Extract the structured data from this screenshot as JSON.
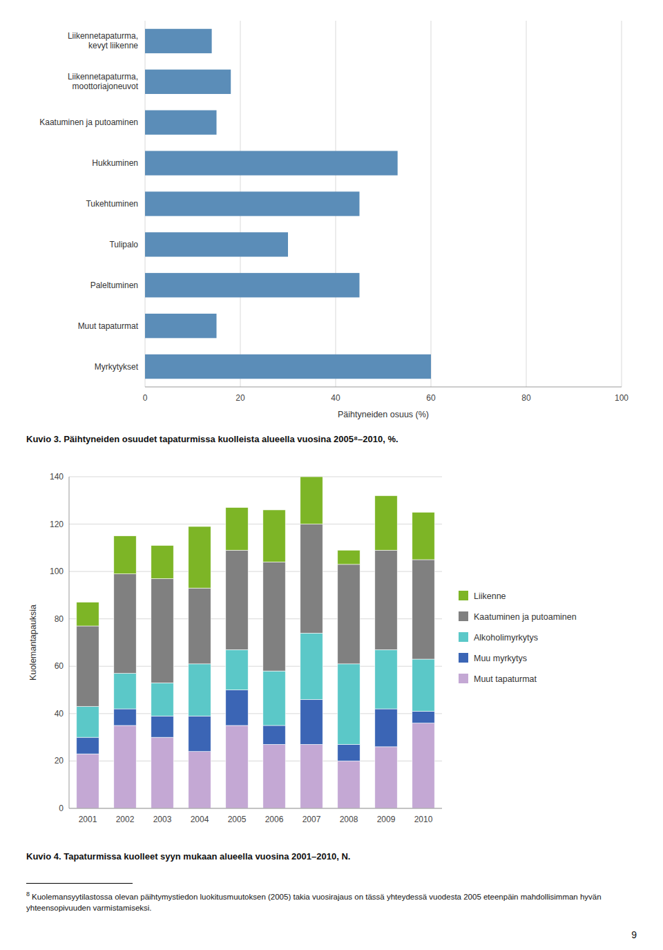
{
  "chart_data": [
    {
      "type": "bar",
      "orientation": "horizontal",
      "title": "Kuvio 3. Päihtyneiden osuudet tapaturmissa kuolleista alueella vuosina 2005⁸–2010, %.",
      "categories": [
        "Liikennetapaturma,\nkevyt liikenne",
        "Liikennetapaturma,\nmoottoriajoneuvot",
        "Kaatuminen ja putoaminen",
        "Hukkuminen",
        "Tukehtuminen",
        "Tulipalo",
        "Paleltuminen",
        "Muut tapaturmat",
        "Myrkytykset"
      ],
      "values": [
        14,
        18,
        15,
        53,
        45,
        30,
        45,
        15,
        60
      ],
      "color": "#5b8db8",
      "xlabel": "Päihtyneiden osuus (%)",
      "xlim": [
        0,
        100
      ],
      "xticks": [
        0,
        20,
        40,
        60,
        80,
        100
      ],
      "grid": true
    },
    {
      "type": "bar",
      "stacked": true,
      "title": "Kuvio 4. Tapaturmissa kuolleet syyn mukaan alueella vuosina 2001–2010, N.",
      "categories": [
        "2001",
        "2002",
        "2003",
        "2004",
        "2005",
        "2006",
        "2007",
        "2008",
        "2009",
        "2010"
      ],
      "series": [
        {
          "name": "Muut tapaturmat",
          "color": "#c4a8d4",
          "values": [
            23,
            35,
            30,
            24,
            35,
            27,
            27,
            20,
            26,
            36
          ]
        },
        {
          "name": "Muu myrkytys",
          "color": "#3b65b5",
          "values": [
            7,
            7,
            9,
            15,
            15,
            8,
            19,
            7,
            16,
            5
          ]
        },
        {
          "name": "Alkoholimyrkytys",
          "color": "#5bc8c8",
          "values": [
            13,
            15,
            14,
            22,
            17,
            23,
            28,
            34,
            25,
            22
          ]
        },
        {
          "name": "Kaatuminen ja putoaminen",
          "color": "#808080",
          "values": [
            34,
            42,
            44,
            32,
            42,
            46,
            46,
            42,
            42,
            42
          ]
        },
        {
          "name": "Liikenne",
          "color": "#7db526",
          "values": [
            10,
            16,
            14,
            26,
            18,
            22,
            20,
            6,
            23,
            20
          ]
        }
      ],
      "ylabel": "Kuolemantapauksia",
      "ylim": [
        0,
        140
      ],
      "yticks": [
        0,
        20,
        40,
        60,
        80,
        100,
        120,
        140
      ],
      "grid": true,
      "legend": "right"
    }
  ],
  "footnote_mark": "8",
  "footnote": "Kuolemansyytilastossa olevan päihtymystiedon luokitusmuutoksen (2005) takia vuosirajaus on tässä yhteydessä vuodesta 2005 eteenpäin mahdollisimman hyvän yhteensopivuuden varmistamiseksi.",
  "page_number": "9"
}
